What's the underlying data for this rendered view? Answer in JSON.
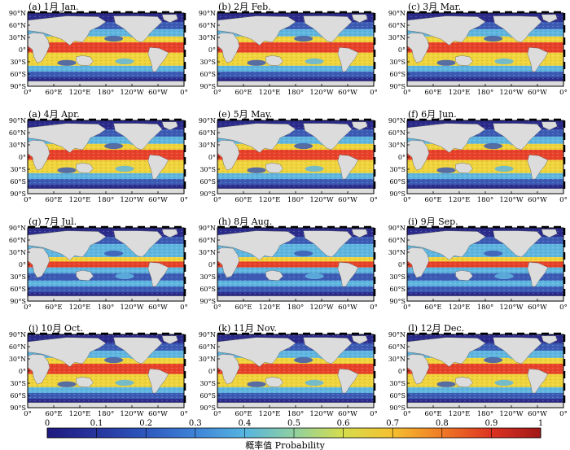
{
  "figure": {
    "panels": [
      {
        "label": "(a) 1月 Jan."
      },
      {
        "label": "(b) 2月 Feb."
      },
      {
        "label": "(c) 3月 Mar."
      },
      {
        "label": "(a) 4月 Apr."
      },
      {
        "label": "(e) 5月 May."
      },
      {
        "label": "(f) 6月 Jun."
      },
      {
        "label": "(g) 7月 Jul."
      },
      {
        "label": "(h) 8月 Aug."
      },
      {
        "label": "(i) 9月 Sep."
      },
      {
        "label": "(j) 10月 Oct."
      },
      {
        "label": "(k) 11月 Nov."
      },
      {
        "label": "(l) 12月 Dec."
      }
    ],
    "lat_ticks": [
      "90°N",
      "60°N",
      "30°N",
      "0°",
      "30°S",
      "60°S",
      "90°S"
    ],
    "lon_ticks": [
      "0°",
      "60°E",
      "120°E",
      "180°",
      "120°W",
      "60°W",
      "0°"
    ],
    "colorbar": {
      "ticks": [
        "0",
        "0.1",
        "0.2",
        "0.3",
        "0.4",
        "0.5",
        "0.6",
        "0.7",
        "0.8",
        "0.9",
        "1"
      ],
      "label": "概率值 Probability",
      "min": 0,
      "max": 1
    },
    "colors": {
      "land": "#dcdcdc",
      "polar": "#2b2b8c",
      "cold": "#3c5bb4",
      "mid": "#5fb6e0",
      "warm": "#f0d43c",
      "hot": "#e8412a"
    }
  }
}
